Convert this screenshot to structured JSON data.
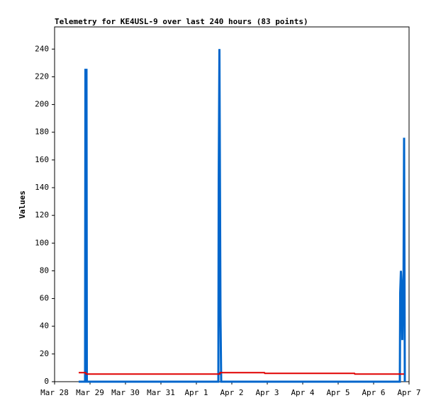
{
  "chart_data": {
    "type": "line",
    "title": "Telemetry for KE4USL-9 over last 240 hours (83 points)",
    "ylabel": "Values",
    "xlim": [
      0,
      10
    ],
    "ylim": [
      0,
      256
    ],
    "xticks": [
      {
        "value": 0,
        "label": "Mar 28"
      },
      {
        "value": 1,
        "label": "Mar 29"
      },
      {
        "value": 2,
        "label": "Mar 30"
      },
      {
        "value": 3,
        "label": "Mar 31"
      },
      {
        "value": 4,
        "label": "Apr 1"
      },
      {
        "value": 5,
        "label": "Apr 2"
      },
      {
        "value": 6,
        "label": "Apr 3"
      },
      {
        "value": 7,
        "label": "Apr 4"
      },
      {
        "value": 8,
        "label": "Apr 5"
      },
      {
        "value": 9,
        "label": "Apr 6"
      },
      {
        "value": 10,
        "label": "Apr 7"
      }
    ],
    "yticks": [
      0,
      20,
      40,
      60,
      80,
      100,
      120,
      140,
      160,
      180,
      200,
      220,
      240
    ],
    "series": [
      {
        "color": "#0066cc",
        "width": 3,
        "x": [
          0.68,
          0.86,
          0.87,
          0.9,
          0.91,
          4.62,
          4.63,
          4.65,
          4.68,
          4.7,
          9.74,
          9.75,
          9.77,
          9.79,
          9.81,
          9.82,
          9.84,
          9.86,
          9.88
        ],
        "values": [
          0,
          0,
          225,
          225,
          0,
          0,
          144,
          240,
          48,
          0,
          0,
          64,
          80,
          70,
          30,
          50,
          48,
          176,
          0
        ]
      },
      {
        "color": "#e00000",
        "width": 2,
        "x": [
          0.68,
          0.88,
          0.89,
          4.66,
          4.67,
          5.92,
          5.93,
          8.46,
          8.47,
          9.86
        ],
        "values": [
          6.5,
          6.5,
          5.5,
          5.5,
          6.5,
          6.5,
          6,
          6,
          5.5,
          5.5
        ]
      }
    ]
  }
}
